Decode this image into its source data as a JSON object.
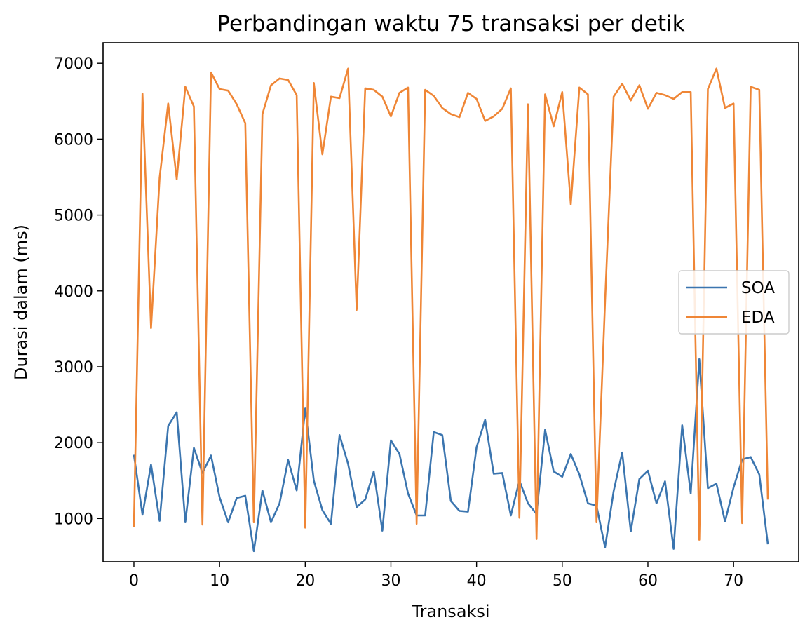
{
  "chart_data": {
    "type": "line",
    "title": "Perbandingan waktu 75 transaksi per detik",
    "xlabel": "Transaksi",
    "ylabel": "Durasi dalam (ms)",
    "xlim": [
      -3.6,
      77.6
    ],
    "ylim": [
      430,
      7270
    ],
    "x_ticks": [
      0,
      10,
      20,
      30,
      40,
      50,
      60,
      70
    ],
    "y_ticks": [
      1000,
      2000,
      3000,
      4000,
      5000,
      6000,
      7000
    ],
    "grid": false,
    "legend_position": "center-right",
    "x": [
      0,
      1,
      2,
      3,
      4,
      5,
      6,
      7,
      8,
      9,
      10,
      11,
      12,
      13,
      14,
      15,
      16,
      17,
      18,
      19,
      20,
      21,
      22,
      23,
      24,
      25,
      26,
      27,
      28,
      29,
      30,
      31,
      32,
      33,
      34,
      35,
      36,
      37,
      38,
      39,
      40,
      41,
      42,
      43,
      44,
      45,
      46,
      47,
      48,
      49,
      50,
      51,
      52,
      53,
      54,
      55,
      56,
      57,
      58,
      59,
      60,
      61,
      62,
      63,
      64,
      65,
      66,
      67,
      68,
      69,
      70,
      71,
      72,
      73,
      74
    ],
    "series": [
      {
        "name": "SOA",
        "color": "#3b75af",
        "values": [
          1840,
          1050,
          1710,
          970,
          2220,
          2400,
          950,
          1930,
          1600,
          1830,
          1280,
          950,
          1270,
          1300,
          570,
          1370,
          950,
          1200,
          1770,
          1370,
          2450,
          1500,
          1110,
          930,
          2100,
          1720,
          1150,
          1250,
          1620,
          840,
          2030,
          1850,
          1330,
          1040,
          1040,
          2140,
          2100,
          1230,
          1100,
          1090,
          1940,
          2300,
          1590,
          1600,
          1040,
          1500,
          1200,
          1060,
          2170,
          1620,
          1550,
          1850,
          1580,
          1200,
          1170,
          620,
          1360,
          1870,
          830,
          1520,
          1630,
          1200,
          1490,
          600,
          2230,
          1330,
          3100,
          1400,
          1460,
          960,
          1410,
          1780,
          1810,
          1580,
          660
        ]
      },
      {
        "name": "EDA",
        "color": "#ef8636",
        "values": [
          890,
          6600,
          3510,
          5490,
          6470,
          5470,
          6690,
          6430,
          920,
          6880,
          6660,
          6640,
          6460,
          6210,
          950,
          6330,
          6710,
          6800,
          6780,
          6580,
          880,
          6740,
          5800,
          6560,
          6540,
          6930,
          3750,
          6670,
          6650,
          6560,
          6300,
          6610,
          6680,
          930,
          6650,
          6570,
          6410,
          6330,
          6290,
          6610,
          6530,
          6240,
          6300,
          6400,
          6670,
          1010,
          6460,
          730,
          6590,
          6170,
          6620,
          5140,
          6680,
          6590,
          950,
          3860,
          6560,
          6730,
          6510,
          6710,
          6400,
          6610,
          6580,
          6530,
          6620,
          6620,
          720,
          6660,
          6930,
          6410,
          6470,
          940,
          6690,
          6650,
          1250
        ]
      }
    ]
  }
}
